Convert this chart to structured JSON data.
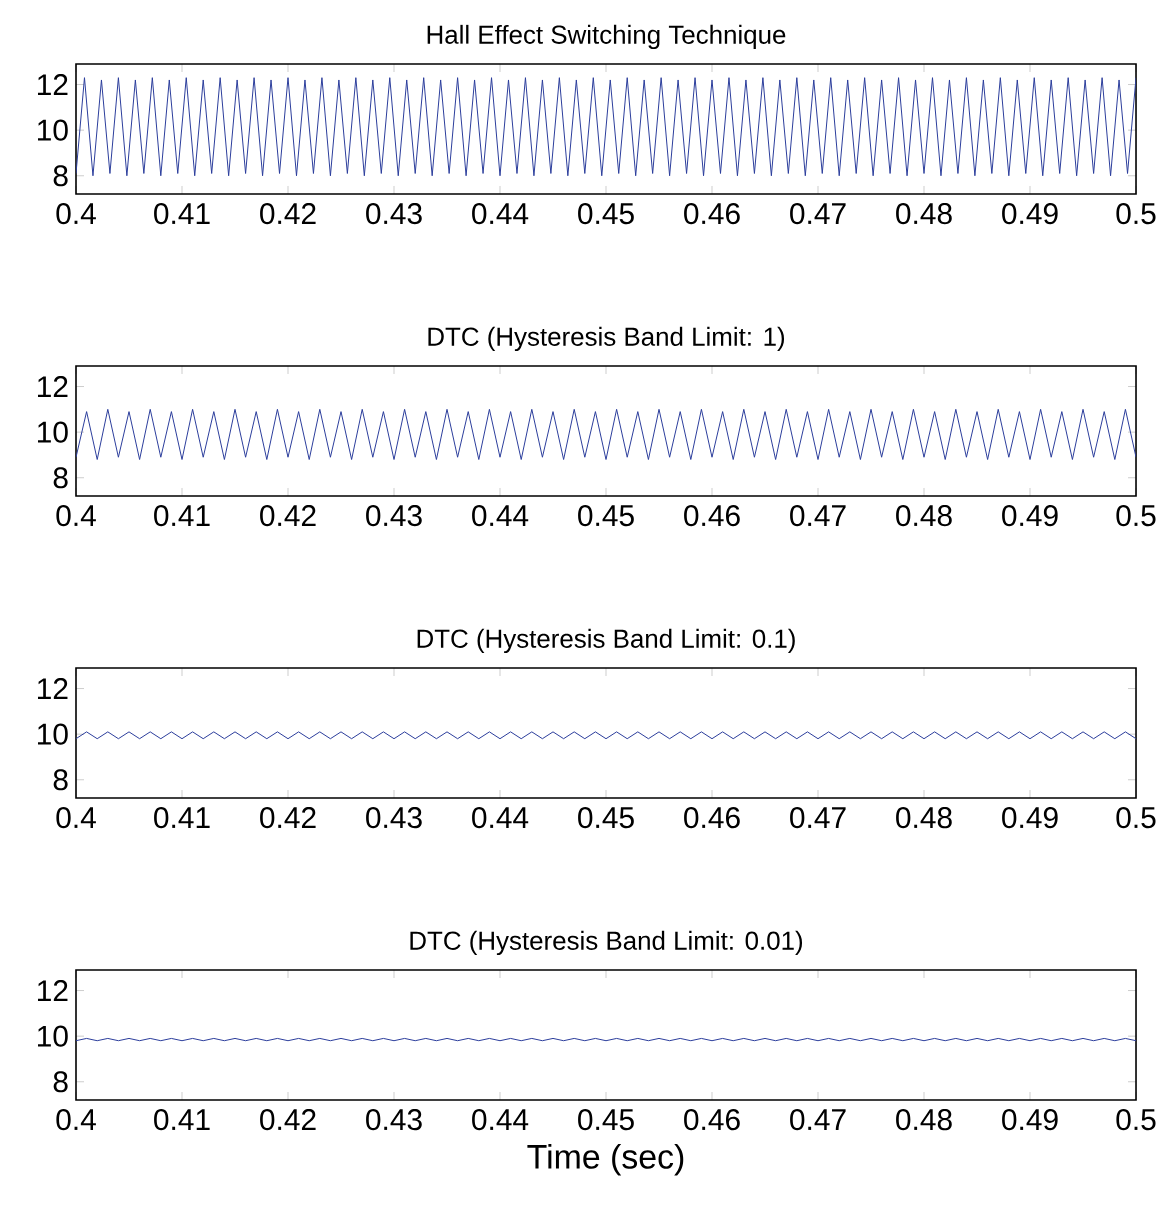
{
  "chart_data": [
    {
      "type": "line",
      "title": "Hall Effect Switching Technique",
      "xlim": [
        0.4,
        0.5
      ],
      "ylim": [
        7.2,
        12.9
      ],
      "xticks": [
        0.4,
        0.41,
        0.42,
        0.43,
        0.44,
        0.45,
        0.46,
        0.47,
        0.48,
        0.49,
        0.5
      ],
      "yticks": [
        8,
        10,
        12
      ],
      "series": [
        {
          "color": "#2b3d9c",
          "x": [
            0.4,
            0.4008,
            0.4016,
            0.4024,
            0.4032,
            0.404,
            0.4048,
            0.4056,
            0.4064,
            0.4072,
            0.408,
            0.4088,
            0.4096,
            0.4104,
            0.4112,
            0.412,
            0.4128,
            0.4136,
            0.4144,
            0.4152,
            0.416,
            0.4168,
            0.4176,
            0.4184,
            0.4192,
            0.42,
            0.4208,
            0.4216,
            0.4224,
            0.4232,
            0.424,
            0.4248,
            0.4256,
            0.4264,
            0.4272,
            0.428,
            0.4288,
            0.4296,
            0.4304,
            0.4312,
            0.432,
            0.4328,
            0.4336,
            0.4344,
            0.4352,
            0.436,
            0.4368,
            0.4376,
            0.4384,
            0.4392,
            0.44,
            0.4408,
            0.4416,
            0.4424,
            0.4432,
            0.444,
            0.4448,
            0.4456,
            0.4464,
            0.4472,
            0.448,
            0.4488,
            0.4496,
            0.4504,
            0.4512,
            0.452,
            0.4528,
            0.4536,
            0.4544,
            0.4552,
            0.456,
            0.4568,
            0.4576,
            0.4584,
            0.4592,
            0.46,
            0.4608,
            0.4616,
            0.4624,
            0.4632,
            0.464,
            0.4648,
            0.4656,
            0.4664,
            0.4672,
            0.468,
            0.4688,
            0.4696,
            0.4704,
            0.4712,
            0.472,
            0.4728,
            0.4736,
            0.4744,
            0.4752,
            0.476,
            0.4768,
            0.4776,
            0.4784,
            0.4792,
            0.48,
            0.4808,
            0.4816,
            0.4824,
            0.4832,
            0.484,
            0.4848,
            0.4856,
            0.4864,
            0.4872,
            0.488,
            0.4888,
            0.4896,
            0.4904,
            0.4912,
            0.492,
            0.4928,
            0.4936,
            0.4944,
            0.4952,
            0.496,
            0.4968,
            0.4976,
            0.4984,
            0.4992,
            0.5
          ],
          "values": [
            8.1,
            12.3,
            8,
            12.2,
            8.1,
            12.3,
            8,
            12.2,
            8.1,
            12.3,
            8,
            12.2,
            8.1,
            12.3,
            8,
            12.2,
            8.1,
            12.3,
            8,
            12.2,
            8.1,
            12.3,
            8,
            12.2,
            8.1,
            12.3,
            8,
            12.2,
            8.1,
            12.3,
            8,
            12.2,
            8.1,
            12.3,
            8,
            12.2,
            8.1,
            12.3,
            8,
            12.2,
            8.1,
            12.3,
            8,
            12.2,
            8.1,
            12.3,
            8,
            12.2,
            8.1,
            12.3,
            8,
            12.2,
            8.1,
            12.3,
            8,
            12.2,
            8.1,
            12.3,
            8,
            12.2,
            8.1,
            12.3,
            8,
            12.2,
            8.1,
            12.3,
            8,
            12.2,
            8.1,
            12.3,
            8,
            12.2,
            8.1,
            12.3,
            8,
            12.2,
            8.1,
            12.3,
            8,
            12.2,
            8.1,
            12.3,
            8,
            12.2,
            8.1,
            12.3,
            8,
            12.2,
            8.1,
            12.3,
            8,
            12.2,
            8.1,
            12.3,
            8,
            12.2,
            8.1,
            12.3,
            8,
            12.2,
            8.1,
            12.3,
            8,
            12.2,
            8.1,
            12.3,
            8,
            12.2,
            8.1,
            12.3,
            8,
            12.2,
            8.1,
            12.3,
            8,
            12.2,
            8.1,
            12.3,
            8,
            12.2,
            8.1,
            12.3,
            8,
            12.2,
            8.1,
            12.3
          ]
        }
      ]
    },
    {
      "type": "line",
      "title": "DTC (Hysteresis Band Limit: 1)",
      "xlim": [
        0.4,
        0.5
      ],
      "ylim": [
        7.2,
        12.9
      ],
      "xticks": [
        0.4,
        0.41,
        0.42,
        0.43,
        0.44,
        0.45,
        0.46,
        0.47,
        0.48,
        0.49,
        0.5
      ],
      "yticks": [
        8,
        10,
        12
      ],
      "series": [
        {
          "color": "#2b3d9c",
          "x": [
            0.4,
            0.401,
            0.402,
            0.403,
            0.404,
            0.405,
            0.406,
            0.407,
            0.408,
            0.409,
            0.41,
            0.411,
            0.412,
            0.413,
            0.414,
            0.415,
            0.416,
            0.417,
            0.418,
            0.419,
            0.42,
            0.421,
            0.422,
            0.423,
            0.424,
            0.425,
            0.426,
            0.427,
            0.428,
            0.429,
            0.43,
            0.431,
            0.432,
            0.433,
            0.434,
            0.435,
            0.436,
            0.437,
            0.438,
            0.439,
            0.44,
            0.441,
            0.442,
            0.443,
            0.444,
            0.445,
            0.446,
            0.447,
            0.448,
            0.449,
            0.45,
            0.451,
            0.452,
            0.453,
            0.454,
            0.455,
            0.456,
            0.457,
            0.458,
            0.459,
            0.46,
            0.461,
            0.462,
            0.463,
            0.464,
            0.465,
            0.466,
            0.467,
            0.468,
            0.469,
            0.47,
            0.471,
            0.472,
            0.473,
            0.474,
            0.475,
            0.476,
            0.477,
            0.478,
            0.479,
            0.48,
            0.481,
            0.482,
            0.483,
            0.484,
            0.485,
            0.486,
            0.487,
            0.488,
            0.489,
            0.49,
            0.491,
            0.492,
            0.493,
            0.494,
            0.495,
            0.496,
            0.497,
            0.498,
            0.499,
            0.5
          ],
          "values": [
            8.9,
            10.9,
            8.8,
            11,
            8.9,
            10.9,
            8.8,
            11,
            8.9,
            10.9,
            8.8,
            11,
            8.9,
            10.9,
            8.8,
            11,
            8.9,
            10.9,
            8.8,
            11,
            8.9,
            10.9,
            8.8,
            11,
            8.9,
            10.9,
            8.8,
            11,
            8.9,
            10.9,
            8.8,
            11,
            8.9,
            10.9,
            8.8,
            11,
            8.9,
            10.9,
            8.8,
            11,
            8.9,
            10.9,
            8.8,
            11,
            8.9,
            10.9,
            8.8,
            11,
            8.9,
            10.9,
            8.8,
            11,
            8.9,
            10.9,
            8.8,
            11,
            8.9,
            10.9,
            8.8,
            11,
            8.9,
            10.9,
            8.8,
            11,
            8.9,
            10.9,
            8.8,
            11,
            8.9,
            10.9,
            8.8,
            11,
            8.9,
            10.9,
            8.8,
            11,
            8.9,
            10.9,
            8.8,
            11,
            8.9,
            10.9,
            8.8,
            11,
            8.9,
            10.9,
            8.8,
            11,
            8.9,
            10.9,
            8.8,
            11,
            8.9,
            10.9,
            8.8,
            11,
            8.9,
            10.9,
            8.8,
            11,
            8.9
          ]
        }
      ]
    },
    {
      "type": "line",
      "title": "DTC (Hysteresis Band Limit: 0.1)",
      "xlim": [
        0.4,
        0.5
      ],
      "ylim": [
        7.2,
        12.9
      ],
      "xticks": [
        0.4,
        0.41,
        0.42,
        0.43,
        0.44,
        0.45,
        0.46,
        0.47,
        0.48,
        0.49,
        0.5
      ],
      "yticks": [
        8,
        10,
        12
      ],
      "series": [
        {
          "color": "#2b3d9c",
          "x": [
            0.4,
            0.401,
            0.402,
            0.403,
            0.404,
            0.405,
            0.406,
            0.407,
            0.408,
            0.409,
            0.41,
            0.411,
            0.412,
            0.413,
            0.414,
            0.415,
            0.416,
            0.417,
            0.418,
            0.419,
            0.42,
            0.421,
            0.422,
            0.423,
            0.424,
            0.425,
            0.426,
            0.427,
            0.428,
            0.429,
            0.43,
            0.431,
            0.432,
            0.433,
            0.434,
            0.435,
            0.436,
            0.437,
            0.438,
            0.439,
            0.44,
            0.441,
            0.442,
            0.443,
            0.444,
            0.445,
            0.446,
            0.447,
            0.448,
            0.449,
            0.45,
            0.451,
            0.452,
            0.453,
            0.454,
            0.455,
            0.456,
            0.457,
            0.458,
            0.459,
            0.46,
            0.461,
            0.462,
            0.463,
            0.464,
            0.465,
            0.466,
            0.467,
            0.468,
            0.469,
            0.47,
            0.471,
            0.472,
            0.473,
            0.474,
            0.475,
            0.476,
            0.477,
            0.478,
            0.479,
            0.48,
            0.481,
            0.482,
            0.483,
            0.484,
            0.485,
            0.486,
            0.487,
            0.488,
            0.489,
            0.49,
            0.491,
            0.492,
            0.493,
            0.494,
            0.495,
            0.496,
            0.497,
            0.498,
            0.499,
            0.5
          ],
          "values": [
            9.8,
            10.1,
            9.8,
            10.1,
            9.8,
            10.1,
            9.8,
            10.1,
            9.8,
            10.1,
            9.8,
            10.1,
            9.8,
            10.1,
            9.8,
            10.1,
            9.8,
            10.1,
            9.8,
            10.1,
            9.8,
            10.1,
            9.8,
            10.1,
            9.8,
            10.1,
            9.8,
            10.1,
            9.8,
            10.1,
            9.8,
            10.1,
            9.8,
            10.1,
            9.8,
            10.1,
            9.8,
            10.1,
            9.8,
            10.1,
            9.8,
            10.1,
            9.8,
            10.1,
            9.8,
            10.1,
            9.8,
            10.1,
            9.8,
            10.1,
            9.8,
            10.1,
            9.8,
            10.1,
            9.8,
            10.1,
            9.8,
            10.1,
            9.8,
            10.1,
            9.8,
            10.1,
            9.8,
            10.1,
            9.8,
            10.1,
            9.8,
            10.1,
            9.8,
            10.1,
            9.8,
            10.1,
            9.8,
            10.1,
            9.8,
            10.1,
            9.8,
            10.1,
            9.8,
            10.1,
            9.8,
            10.1,
            9.8,
            10.1,
            9.8,
            10.1,
            9.8,
            10.1,
            9.8,
            10.1,
            9.8,
            10.1,
            9.8,
            10.1,
            9.8,
            10.1,
            9.8,
            10.1,
            9.8,
            10.1,
            9.8
          ]
        }
      ]
    },
    {
      "type": "line",
      "title": "DTC (Hysteresis Band Limit: 0.01)",
      "xlabel": "Time (sec)",
      "xlim": [
        0.4,
        0.5
      ],
      "ylim": [
        7.2,
        12.9
      ],
      "xticks": [
        0.4,
        0.41,
        0.42,
        0.43,
        0.44,
        0.45,
        0.46,
        0.47,
        0.48,
        0.49,
        0.5
      ],
      "yticks": [
        8,
        10,
        12
      ],
      "series": [
        {
          "color": "#2b3d9c",
          "x": [
            0.4,
            0.401,
            0.402,
            0.403,
            0.404,
            0.405,
            0.406,
            0.407,
            0.408,
            0.409,
            0.41,
            0.411,
            0.412,
            0.413,
            0.414,
            0.415,
            0.416,
            0.417,
            0.418,
            0.419,
            0.42,
            0.421,
            0.422,
            0.423,
            0.424,
            0.425,
            0.426,
            0.427,
            0.428,
            0.429,
            0.43,
            0.431,
            0.432,
            0.433,
            0.434,
            0.435,
            0.436,
            0.437,
            0.438,
            0.439,
            0.44,
            0.441,
            0.442,
            0.443,
            0.444,
            0.445,
            0.446,
            0.447,
            0.448,
            0.449,
            0.45,
            0.451,
            0.452,
            0.453,
            0.454,
            0.455,
            0.456,
            0.457,
            0.458,
            0.459,
            0.46,
            0.461,
            0.462,
            0.463,
            0.464,
            0.465,
            0.466,
            0.467,
            0.468,
            0.469,
            0.47,
            0.471,
            0.472,
            0.473,
            0.474,
            0.475,
            0.476,
            0.477,
            0.478,
            0.479,
            0.48,
            0.481,
            0.482,
            0.483,
            0.484,
            0.485,
            0.486,
            0.487,
            0.488,
            0.489,
            0.49,
            0.491,
            0.492,
            0.493,
            0.494,
            0.495,
            0.496,
            0.497,
            0.498,
            0.499,
            0.5
          ],
          "values": [
            9.8,
            9.9,
            9.8,
            9.9,
            9.8,
            9.9,
            9.8,
            9.9,
            9.8,
            9.9,
            9.8,
            9.9,
            9.8,
            9.9,
            9.8,
            9.9,
            9.8,
            9.9,
            9.8,
            9.9,
            9.8,
            9.9,
            9.8,
            9.9,
            9.8,
            9.9,
            9.8,
            9.9,
            9.8,
            9.9,
            9.8,
            9.9,
            9.8,
            9.9,
            9.8,
            9.9,
            9.8,
            9.9,
            9.8,
            9.9,
            9.8,
            9.9,
            9.8,
            9.9,
            9.8,
            9.9,
            9.8,
            9.9,
            9.8,
            9.9,
            9.8,
            9.9,
            9.8,
            9.9,
            9.8,
            9.9,
            9.8,
            9.9,
            9.8,
            9.9,
            9.8,
            9.9,
            9.8,
            9.9,
            9.8,
            9.9,
            9.8,
            9.9,
            9.8,
            9.9,
            9.8,
            9.9,
            9.8,
            9.9,
            9.8,
            9.9,
            9.8,
            9.9,
            9.8,
            9.9,
            9.8,
            9.9,
            9.8,
            9.9,
            9.8,
            9.9,
            9.8,
            9.9,
            9.8,
            9.9,
            9.8,
            9.9,
            9.8,
            9.9,
            9.8,
            9.9,
            9.8,
            9.9,
            9.8,
            9.9,
            9.8
          ]
        }
      ]
    }
  ]
}
